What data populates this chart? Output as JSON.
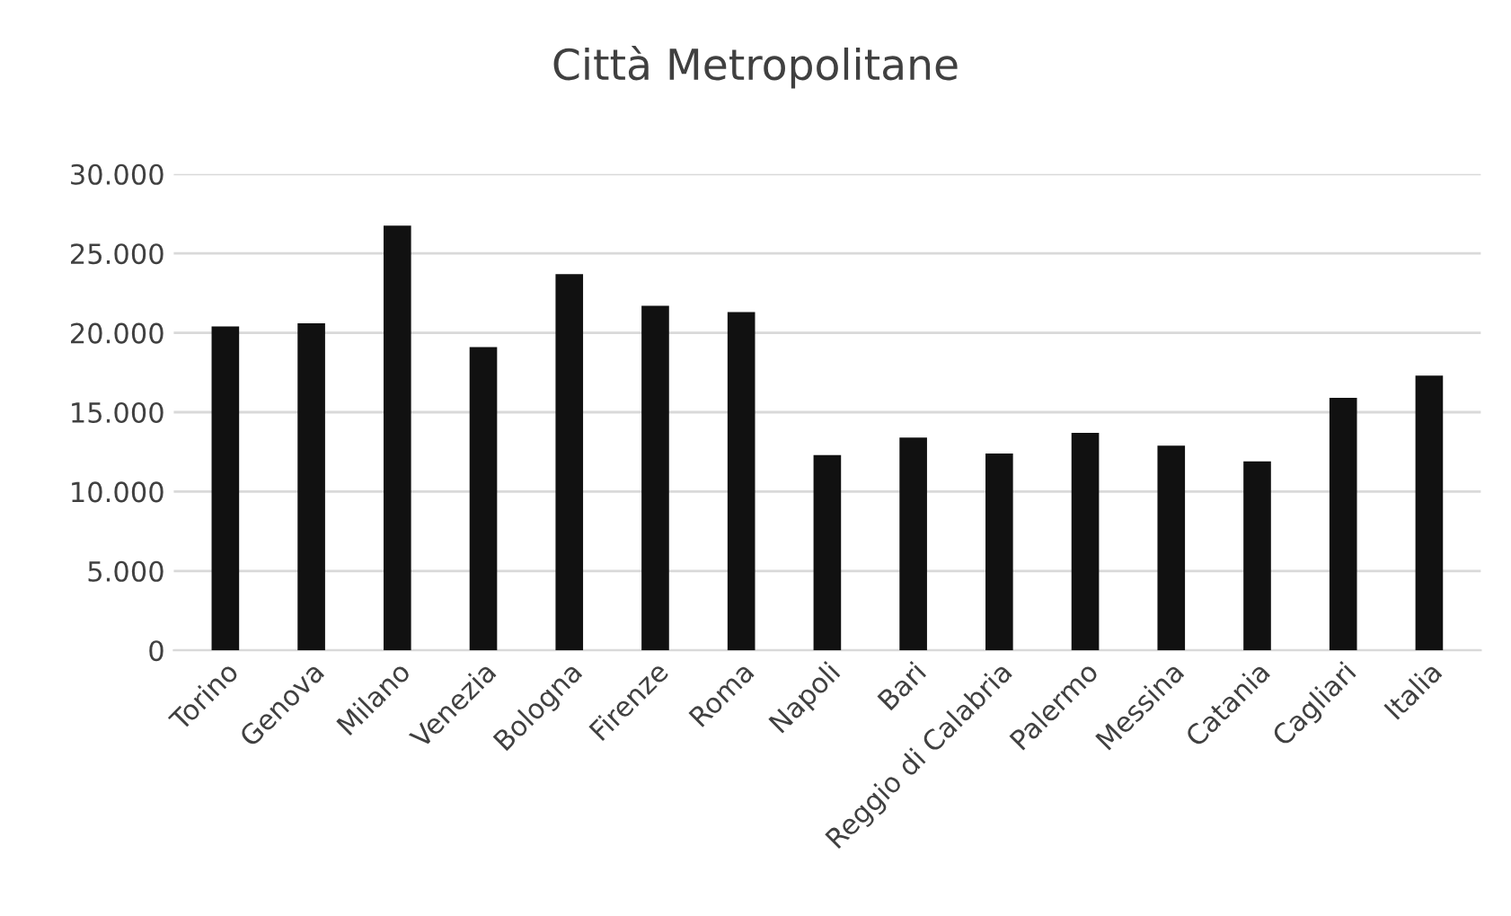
{
  "chart_data": {
    "type": "bar",
    "title": "Città Metropolitane",
    "categories": [
      "Torino",
      "Genova",
      "Milano",
      "Venezia",
      "Bologna",
      "Firenze",
      "Roma",
      "Napoli",
      "Bari",
      "Reggio di Calabria",
      "Palermo",
      "Messina",
      "Catania",
      "Cagliari",
      "Italia"
    ],
    "values": [
      20400,
      20600,
      26750,
      19100,
      23700,
      21700,
      21300,
      12300,
      13400,
      12400,
      13700,
      12900,
      11900,
      15900,
      17300
    ],
    "color": "#111111",
    "ylim": [
      0,
      30000
    ],
    "yticks": [
      0,
      {
        "value": 5000,
        "label": "5.000"
      },
      {
        "value": 10000,
        "label": "10.000"
      },
      {
        "value": 15000,
        "label": "15.000"
      },
      {
        "value": 20000,
        "label": "20.000"
      },
      {
        "value": 25000,
        "label": "25.000"
      },
      {
        "value": 30000,
        "label": "30.000"
      }
    ],
    "grid": "y"
  }
}
